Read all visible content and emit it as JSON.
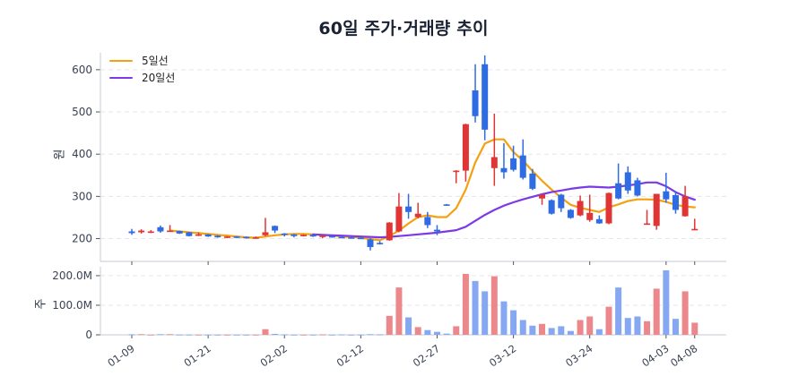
{
  "title": "60일 주가·거래량 추이",
  "legend": [
    {
      "label": "5일선",
      "color": "#f5a011"
    },
    {
      "label": "20일선",
      "color": "#7b3ae6"
    }
  ],
  "colors": {
    "up_candle": "#e03535",
    "down_candle": "#2f6be2",
    "up_volume": "#ec878b",
    "down_volume": "#86a8f2",
    "grid": "#e3e6ea",
    "axis": "#cfd4dc",
    "tick_text": "#3a4253"
  },
  "chart_data": {
    "type": "candlestick",
    "title": "60일 주가·거래량 추이",
    "x_tick_labels": [
      "01-09",
      "01-21",
      "02-02",
      "02-12",
      "02-27",
      "03-12",
      "03-24",
      "04-03",
      "04-08"
    ],
    "x_tick_index": [
      0,
      8,
      16,
      24,
      32,
      40,
      48,
      56,
      59
    ],
    "price_panel": {
      "ylabel": "원",
      "yticks": [
        200,
        300,
        400,
        500,
        600
      ],
      "ylim": [
        146,
        640
      ],
      "grid": true,
      "legend_position": "upper left",
      "ohlc_order": [
        "open",
        "high",
        "low",
        "close"
      ],
      "ohlc": [
        [
          217,
          223,
          209,
          213
        ],
        [
          215,
          222,
          212,
          219
        ],
        [
          215,
          220,
          213,
          217
        ],
        [
          227,
          231,
          214,
          217
        ],
        [
          217,
          232,
          216,
          219
        ],
        [
          218,
          219,
          211,
          212
        ],
        [
          215,
          216,
          205,
          206
        ],
        [
          207,
          215,
          206,
          210
        ],
        [
          210,
          211,
          204,
          205
        ],
        [
          207,
          208,
          202,
          203
        ],
        [
          202,
          206,
          201,
          205
        ],
        [
          205,
          206,
          201,
          202
        ],
        [
          204,
          205,
          200,
          201
        ],
        [
          201,
          205,
          200,
          203
        ],
        [
          208,
          249,
          206,
          215
        ],
        [
          230,
          231,
          213,
          219
        ],
        [
          212,
          213,
          205,
          210
        ],
        [
          210,
          211,
          203,
          206
        ],
        [
          206,
          210,
          205,
          209
        ],
        [
          209,
          210,
          204,
          205
        ],
        [
          204,
          208,
          201,
          207
        ],
        [
          206,
          207,
          202,
          203
        ],
        [
          204,
          205,
          201,
          202
        ],
        [
          203,
          204,
          200,
          201
        ],
        [
          202,
          203,
          199,
          200
        ],
        [
          198,
          201,
          172,
          180
        ],
        [
          190,
          194,
          186,
          188
        ],
        [
          196,
          239,
          195,
          238
        ],
        [
          217,
          308,
          215,
          276
        ],
        [
          276,
          306,
          247,
          263
        ],
        [
          251,
          285,
          248,
          259
        ],
        [
          251,
          263,
          225,
          232
        ],
        [
          221,
          232,
          208,
          217
        ],
        [
          281,
          282,
          278,
          279
        ],
        [
          358,
          362,
          331,
          361
        ],
        [
          361,
          472,
          335,
          471
        ],
        [
          551,
          613,
          475,
          490
        ],
        [
          613,
          634,
          433,
          458
        ],
        [
          367,
          496,
          325,
          393
        ],
        [
          367,
          426,
          342,
          357
        ],
        [
          390,
          420,
          359,
          363
        ],
        [
          397,
          435,
          340,
          344
        ],
        [
          354,
          365,
          315,
          318
        ],
        [
          295,
          305,
          280,
          304
        ],
        [
          291,
          293,
          257,
          259
        ],
        [
          304,
          306,
          263,
          272
        ],
        [
          268,
          270,
          247,
          249
        ],
        [
          255,
          302,
          253,
          289
        ],
        [
          244,
          304,
          240,
          261
        ],
        [
          246,
          255,
          235,
          236
        ],
        [
          236,
          309,
          234,
          308
        ],
        [
          331,
          378,
          293,
          295
        ],
        [
          357,
          371,
          306,
          314
        ],
        [
          338,
          344,
          300,
          302
        ],
        [
          234,
          268,
          233,
          236
        ],
        [
          230,
          306,
          221,
          306
        ],
        [
          312,
          356,
          285,
          293
        ],
        [
          303,
          312,
          259,
          268
        ],
        [
          253,
          325,
          252,
          300
        ],
        [
          221,
          247,
          220,
          223
        ]
      ],
      "series": [
        {
          "name": "5일선",
          "values": [
            null,
            null,
            null,
            null,
            219,
            217,
            215,
            213,
            211,
            209,
            207,
            205,
            203,
            202,
            205,
            208,
            210,
            211,
            211,
            210,
            208,
            207,
            205,
            204,
            202,
            199,
            196,
            206,
            219,
            236,
            251,
            255,
            251,
            251,
            272,
            316,
            380,
            425,
            435,
            435,
            405,
            385,
            360,
            337,
            316,
            297,
            280,
            273,
            268,
            263,
            274,
            281,
            289,
            293,
            293,
            292,
            287,
            280,
            276,
            274
          ]
        },
        {
          "name": "20일선",
          "values": [
            null,
            null,
            null,
            null,
            null,
            null,
            null,
            null,
            null,
            null,
            null,
            null,
            null,
            null,
            null,
            null,
            null,
            null,
            null,
            210,
            209,
            208,
            207,
            206,
            205,
            204,
            203,
            204,
            206,
            208,
            210,
            212,
            214,
            217,
            220,
            228,
            242,
            256,
            268,
            278,
            286,
            293,
            299,
            305,
            310,
            314,
            318,
            321,
            323,
            322,
            321,
            323,
            326,
            329,
            333,
            333,
            324,
            310,
            300,
            292
          ]
        }
      ]
    },
    "volume_panel": {
      "ylabel": "주",
      "unit": "M",
      "yticks": [
        0,
        100,
        200
      ],
      "ytick_labels": [
        "0",
        "100.0M",
        "200.0M"
      ],
      "ylim": [
        0,
        230
      ],
      "grid": true,
      "values": [
        1.5,
        2,
        0.4,
        2,
        2,
        0.5,
        0.5,
        0.4,
        0.3,
        0.3,
        0.3,
        0.3,
        0.3,
        0.3,
        19,
        3,
        1,
        0.3,
        0.3,
        0.3,
        1.2,
        0.3,
        1,
        0.3,
        0.5,
        2,
        1.5,
        64,
        160,
        59,
        26,
        16,
        10,
        4,
        29,
        206,
        182,
        147,
        198,
        113,
        83,
        50,
        31,
        37,
        23,
        29,
        13,
        50,
        62,
        19,
        95,
        160,
        57,
        62,
        46,
        156,
        218,
        54,
        147,
        41
      ]
    }
  }
}
